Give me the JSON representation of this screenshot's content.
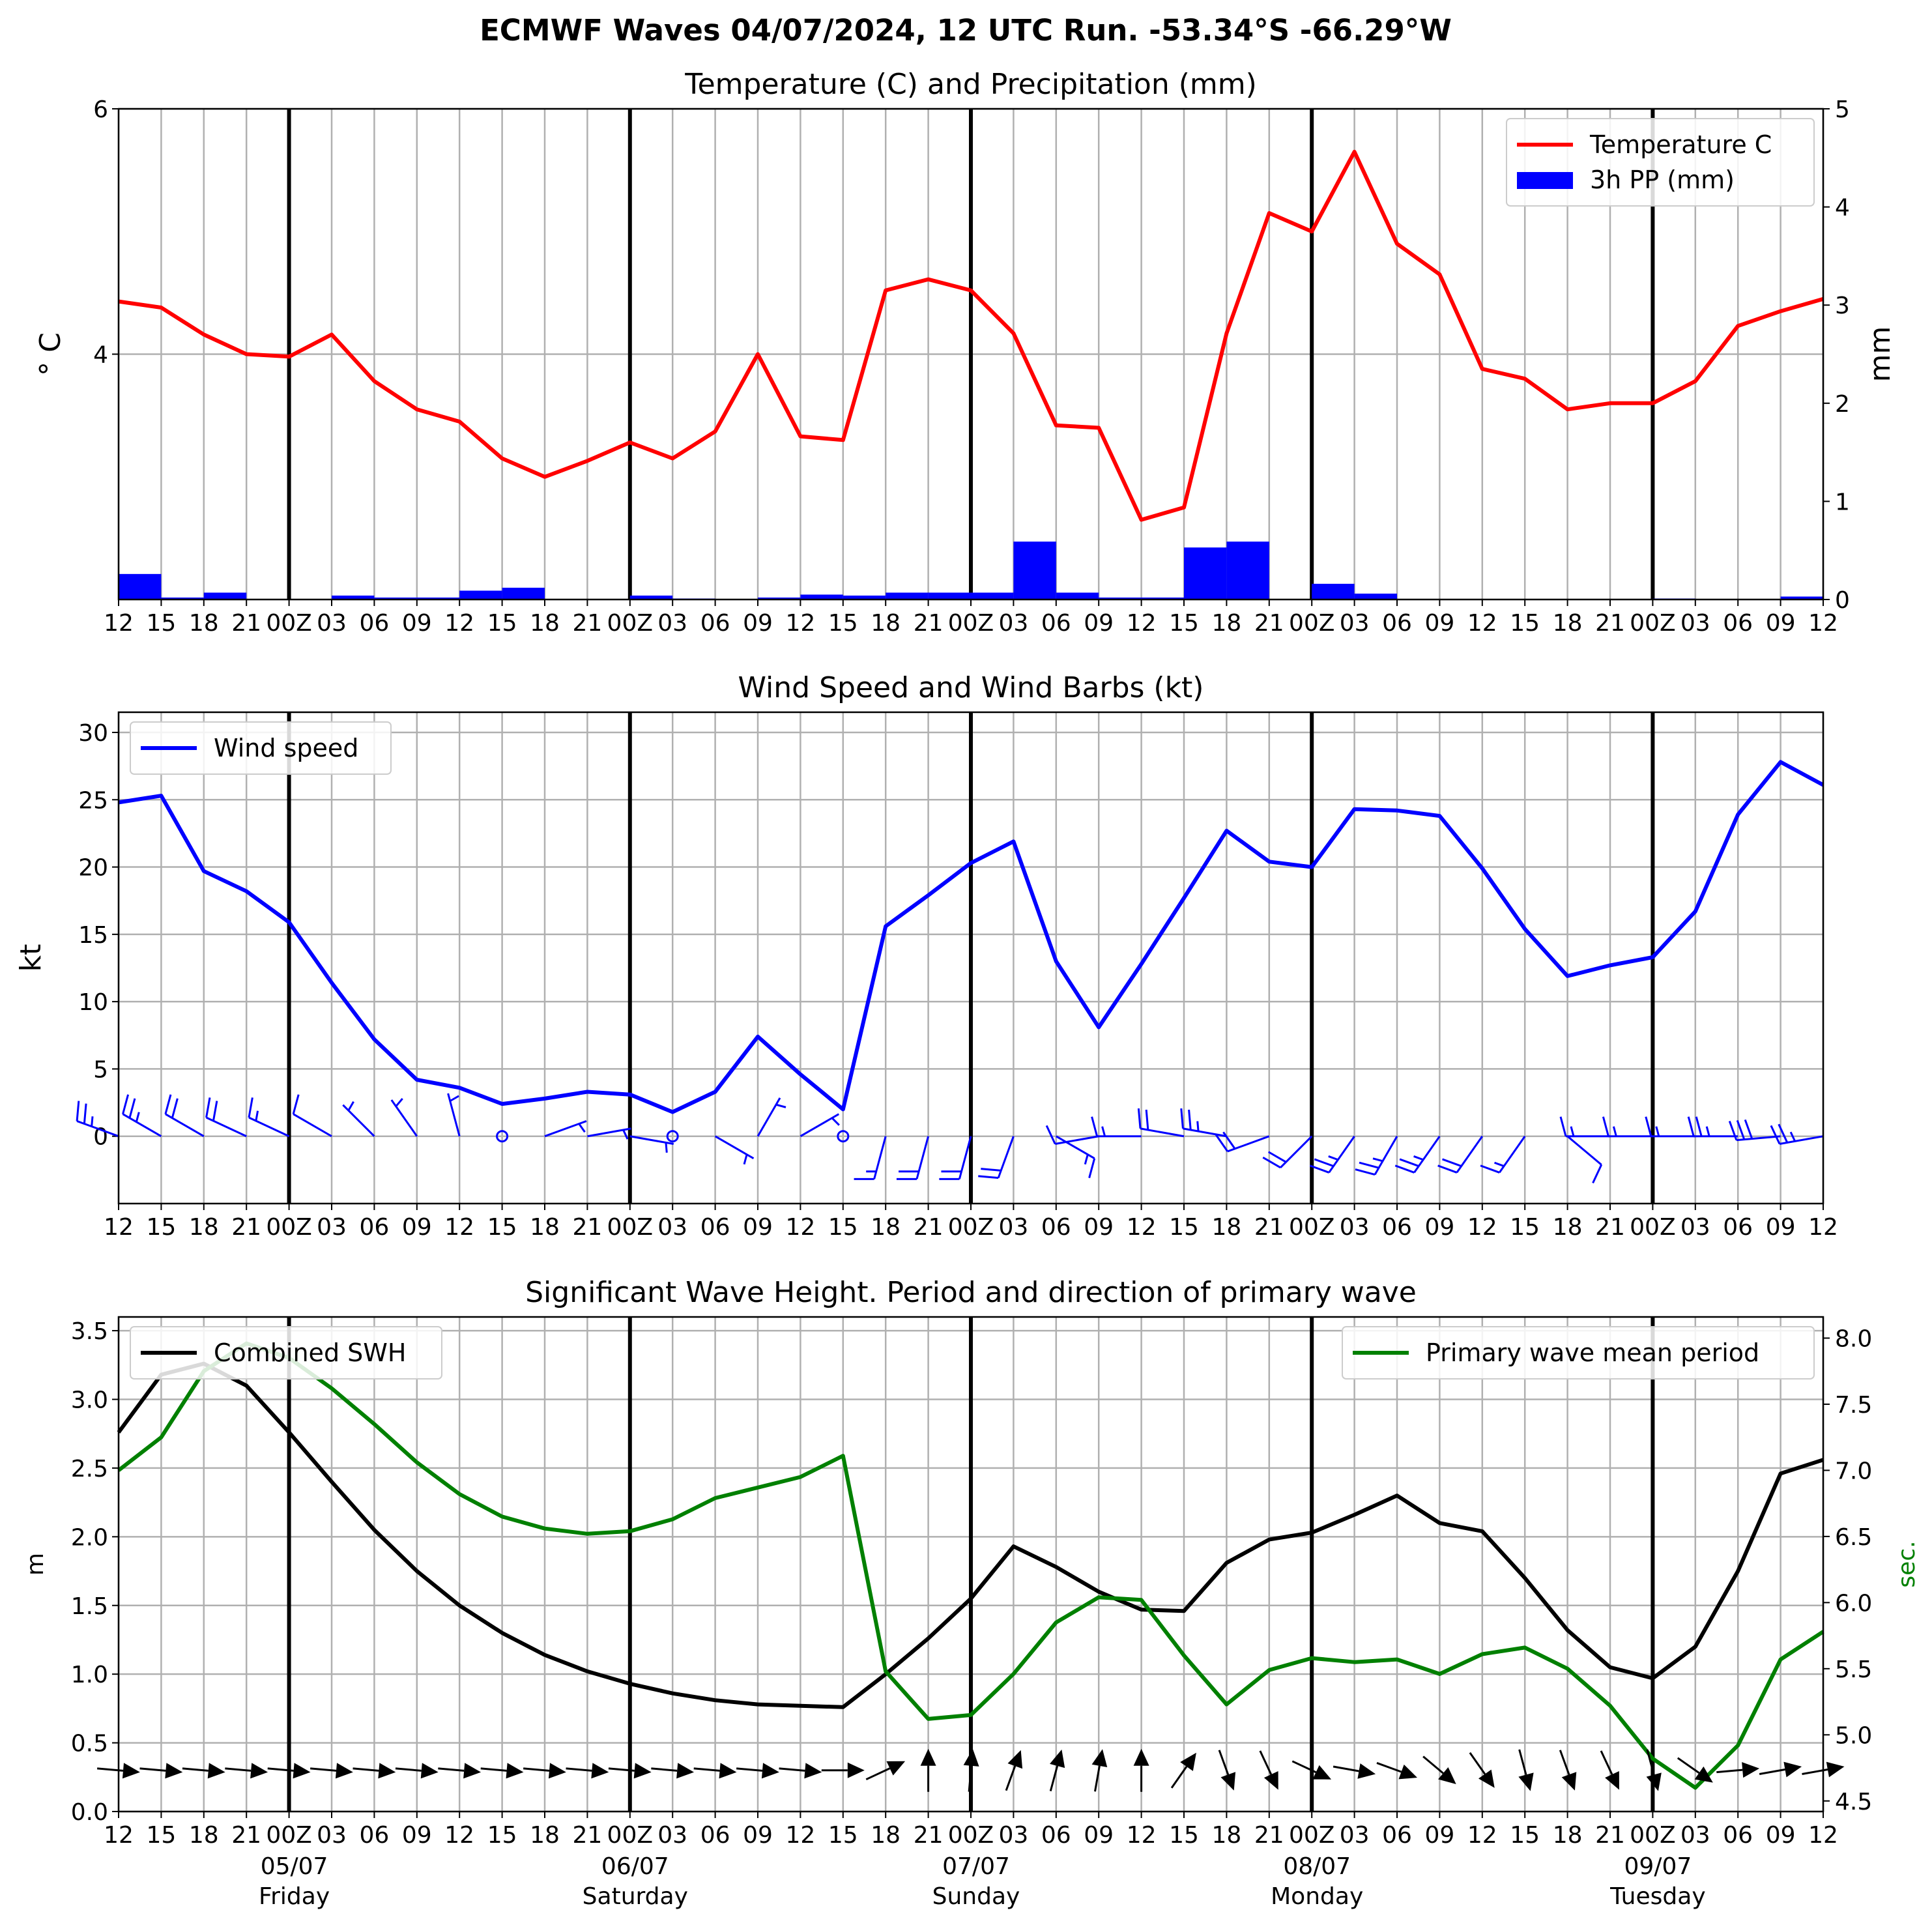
{
  "suptitle": "ECMWF Waves 04/07/2024, 12 UTC Run. -53.34°S -66.29°W",
  "time_ticks": [
    "12",
    "15",
    "18",
    "21",
    "00Z",
    "03",
    "06",
    "09",
    "12",
    "15",
    "18",
    "21",
    "00Z",
    "03",
    "06",
    "09",
    "12",
    "15",
    "18",
    "21",
    "00Z",
    "03",
    "06",
    "09",
    "12",
    "15",
    "18",
    "21",
    "00Z",
    "03",
    "06",
    "09",
    "12",
    "15",
    "18",
    "21",
    "00Z",
    "03",
    "06",
    "09",
    "12"
  ],
  "day_labels": [
    {
      "index": 4,
      "date": "05/07",
      "day": "Friday"
    },
    {
      "index": 12,
      "date": "06/07",
      "day": "Saturday"
    },
    {
      "index": 20,
      "date": "07/07",
      "day": "Sunday"
    },
    {
      "index": 28,
      "date": "08/07",
      "day": "Monday"
    },
    {
      "index": 36,
      "date": "09/07",
      "day": "Tuesday"
    }
  ],
  "colors": {
    "temperature": "#ff0000",
    "precipitation": "#0000ff",
    "wind": "#0000ff",
    "swh": "#000000",
    "period": "#008000",
    "grid": "#b0b0b0"
  },
  "chart_data": [
    {
      "type": "line",
      "title": "Temperature (C) and Precipitation (mm)",
      "ylabel": "$^\\circ$C",
      "ylabel_display": "° C",
      "y2label": "mm",
      "ylim": [
        2.0,
        6.0
      ],
      "y_ticks": [
        4,
        6
      ],
      "y2lim": [
        0,
        5
      ],
      "y2_ticks": [
        0,
        1,
        2,
        3,
        4,
        5
      ],
      "legend_position": "top-right",
      "grid": true,
      "series": [
        {
          "name": "Temperature C",
          "type": "line",
          "axis": "left",
          "values": [
            4.43,
            4.38,
            4.16,
            4.0,
            3.98,
            4.16,
            3.78,
            3.55,
            3.45,
            3.15,
            3.0,
            3.13,
            3.28,
            3.15,
            3.37,
            4.0,
            3.33,
            3.3,
            4.52,
            4.61,
            4.52,
            4.17,
            3.42,
            3.4,
            2.65,
            2.75,
            4.17,
            5.15,
            5.0,
            5.65,
            4.9,
            4.65,
            3.88,
            3.8,
            3.55,
            3.6,
            3.6,
            3.78,
            4.23,
            4.35,
            4.45
          ]
        },
        {
          "name": "3h PP (mm)",
          "type": "bar",
          "axis": "right",
          "values": [
            0.26,
            0.02,
            0.07,
            0.0,
            0.0,
            0.04,
            0.02,
            0.02,
            0.09,
            0.12,
            0.0,
            0.0,
            0.04,
            0.01,
            0.0,
            0.02,
            0.05,
            0.04,
            0.07,
            0.07,
            0.07,
            0.59,
            0.07,
            0.02,
            0.02,
            0.53,
            0.59,
            0.0,
            0.16,
            0.06,
            0.0,
            0.0,
            0.0,
            0.0,
            0.0,
            0.0,
            0.01,
            0.0,
            0.0,
            0.03
          ]
        }
      ]
    },
    {
      "type": "line",
      "title": "Wind Speed and Wind Barbs (kt)",
      "ylabel": "kt",
      "ylim": [
        -5,
        31.5
      ],
      "y_ticks": [
        0,
        5,
        10,
        15,
        20,
        25,
        30
      ],
      "legend_position": "top-left",
      "grid": true,
      "series": [
        {
          "name": "Wind speed",
          "values": [
            24.8,
            25.3,
            19.7,
            18.2,
            15.9,
            11.4,
            7.2,
            4.2,
            3.6,
            2.4,
            2.8,
            3.3,
            3.1,
            1.8,
            3.3,
            7.4,
            4.6,
            2.0,
            15.6,
            17.9,
            20.3,
            21.9,
            13.0,
            8.1,
            12.8,
            17.7,
            22.7,
            20.4,
            20.0,
            24.3,
            24.2,
            23.8,
            19.9,
            15.4,
            11.9,
            12.7,
            13.3,
            16.7,
            23.9,
            27.8,
            26.1
          ]
        },
        {
          "name": "Wind barbs",
          "from_direction_deg": [
            290,
            300,
            300,
            295,
            295,
            300,
            315,
            325,
            345,
            20,
            70,
            80,
            100,
            40,
            120,
            30,
            60,
            10,
            195,
            195,
            195,
            200,
            120,
            260,
            270,
            280,
            280,
            250,
            225,
            215,
            210,
            215,
            215,
            215,
            130,
            270,
            270,
            270,
            270,
            265,
            260
          ]
        }
      ]
    },
    {
      "type": "line",
      "title": "Significant Wave Height. Period and direction of primary wave",
      "ylabel": "m",
      "y2label": "sec.",
      "ylim": [
        0.0,
        3.6
      ],
      "y_ticks": [
        0.0,
        0.5,
        1.0,
        1.5,
        2.0,
        2.5,
        3.0,
        3.5
      ],
      "y2lim": [
        4.42,
        8.16
      ],
      "y2_ticks": [
        4.5,
        5.0,
        5.5,
        6.0,
        6.5,
        7.0,
        7.5,
        8.0
      ],
      "grid": true,
      "series": [
        {
          "name": "Combined SWH",
          "axis": "left",
          "legend_position": "top-left",
          "values": [
            2.76,
            3.18,
            3.26,
            3.1,
            2.76,
            2.4,
            2.05,
            1.75,
            1.5,
            1.3,
            1.14,
            1.02,
            0.93,
            0.86,
            0.81,
            0.78,
            0.77,
            0.76,
            1.0,
            1.26,
            1.55,
            1.93,
            1.78,
            1.6,
            1.47,
            1.46,
            1.81,
            1.98,
            2.03,
            2.16,
            2.3,
            2.1,
            2.04,
            1.7,
            1.32,
            1.05,
            0.97,
            1.2,
            1.75,
            2.46,
            2.56
          ]
        },
        {
          "name": "Primary wave mean period",
          "axis": "right",
          "legend_position": "top-right",
          "values": [
            7.0,
            7.25,
            7.75,
            7.96,
            7.85,
            7.62,
            7.35,
            7.06,
            6.82,
            6.65,
            6.56,
            6.52,
            6.54,
            6.63,
            6.79,
            6.87,
            6.95,
            7.11,
            5.48,
            5.12,
            5.15,
            5.46,
            5.85,
            6.04,
            6.02,
            5.6,
            5.23,
            5.49,
            5.58,
            5.55,
            5.57,
            5.46,
            5.61,
            5.66,
            5.5,
            5.22,
            4.82,
            4.6,
            4.92,
            5.57,
            5.78
          ]
        },
        {
          "name": "Primary wave direction arrows",
          "to_direction_deg": [
            95,
            95,
            95,
            95,
            95,
            95,
            95,
            95,
            95,
            95,
            95,
            95,
            95,
            95,
            95,
            95,
            95,
            90,
            65,
            0,
            5,
            20,
            15,
            10,
            0,
            35,
            160,
            155,
            115,
            100,
            110,
            130,
            145,
            165,
            160,
            155,
            165,
            125,
            85,
            80,
            80
          ]
        }
      ]
    }
  ]
}
